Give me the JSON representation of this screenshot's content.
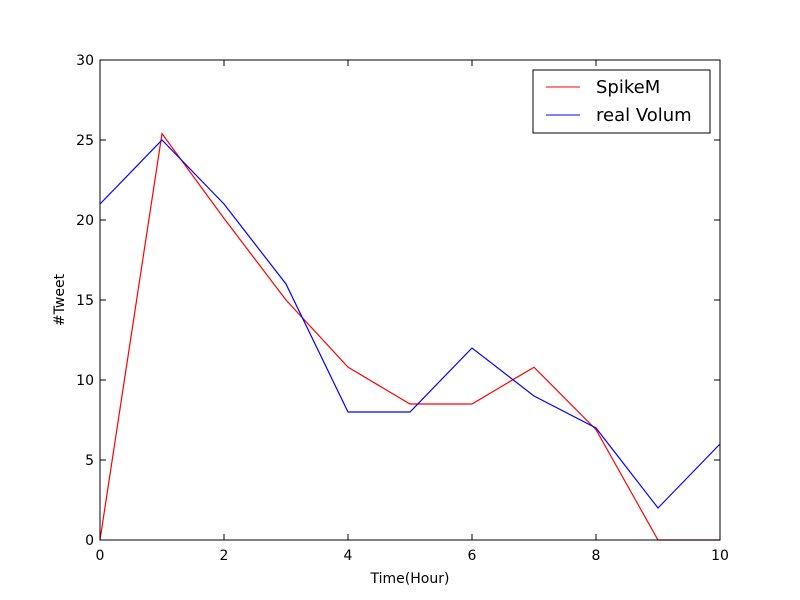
{
  "chart_data": {
    "type": "line",
    "title": "",
    "xlabel": "Time(Hour)",
    "ylabel": "#Tweet",
    "xlim": [
      0,
      10
    ],
    "ylim": [
      0,
      30
    ],
    "xticks": [
      "0",
      "2",
      "4",
      "6",
      "8",
      "10"
    ],
    "yticks": [
      "0",
      "5",
      "10",
      "15",
      "20",
      "25",
      "30"
    ],
    "grid": false,
    "legend_position": "top-right",
    "x": [
      0,
      1,
      2,
      3,
      4,
      5,
      6,
      7,
      8,
      9,
      10
    ],
    "series": [
      {
        "name": "SpikeM",
        "color": "#ff0000",
        "values": [
          0,
          25.4,
          20.1,
          15.0,
          10.8,
          8.5,
          8.5,
          10.8,
          6.9,
          0,
          0
        ]
      },
      {
        "name": "real Volum",
        "color": "#0000ff",
        "values": [
          21,
          25,
          21,
          16,
          8,
          8,
          12,
          9,
          7,
          2,
          6
        ]
      }
    ]
  }
}
